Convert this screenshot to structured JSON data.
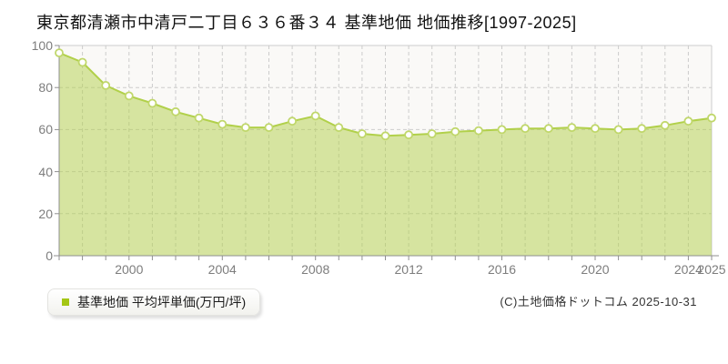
{
  "title": "東京都清瀬市中清戸二丁目６３６番３４ 基準地価 地価推移[1997-2025]",
  "legend": {
    "label": "基準地価 平均坪単価(万円/坪)",
    "marker_color": "#a4c614"
  },
  "copyright": "(C)土地価格ドットコム 2025-10-31",
  "colors": {
    "line": "#b1d04a",
    "area_fill": "#b1d04a",
    "area_fill_opacity": 0.5,
    "marker_fill": "#ffffff",
    "marker_stroke": "#c0d76b",
    "grid": "#cccccc",
    "plot_border": "#cccccc",
    "axis": "#8f8f8f",
    "plot_background": "#faf9f7",
    "tick_label": "#7d7d7d"
  },
  "chart_data": {
    "type": "area",
    "title": "東京都清瀬市中清戸二丁目６３６番３４ 基準地価 地価推移[1997-2025]",
    "series_name": "基準地価 平均坪単価(万円/坪)",
    "ylabel_unit": "万円/坪",
    "x": [
      1997,
      1998,
      1999,
      2000,
      2001,
      2002,
      2003,
      2004,
      2005,
      2006,
      2007,
      2008,
      2009,
      2010,
      2011,
      2012,
      2013,
      2014,
      2015,
      2016,
      2017,
      2018,
      2019,
      2020,
      2021,
      2022,
      2023,
      2024,
      2025
    ],
    "values": [
      96.5,
      92,
      81,
      76,
      72.5,
      68.5,
      65.5,
      62.5,
      61,
      61,
      64,
      66.5,
      61,
      58,
      57,
      57.5,
      58,
      59,
      59.5,
      60,
      60.5,
      60.5,
      61,
      60.5,
      60,
      60.5,
      62,
      64,
      65.5
    ],
    "xlim": [
      1997,
      2025
    ],
    "ylim": [
      0,
      100
    ],
    "y_ticks": [
      0,
      20,
      40,
      60,
      80,
      100
    ],
    "x_tick_years": [
      2000,
      2004,
      2008,
      2012,
      2016,
      2020,
      2024,
      2025
    ],
    "grid": true,
    "legend_position": "bottom-left"
  }
}
